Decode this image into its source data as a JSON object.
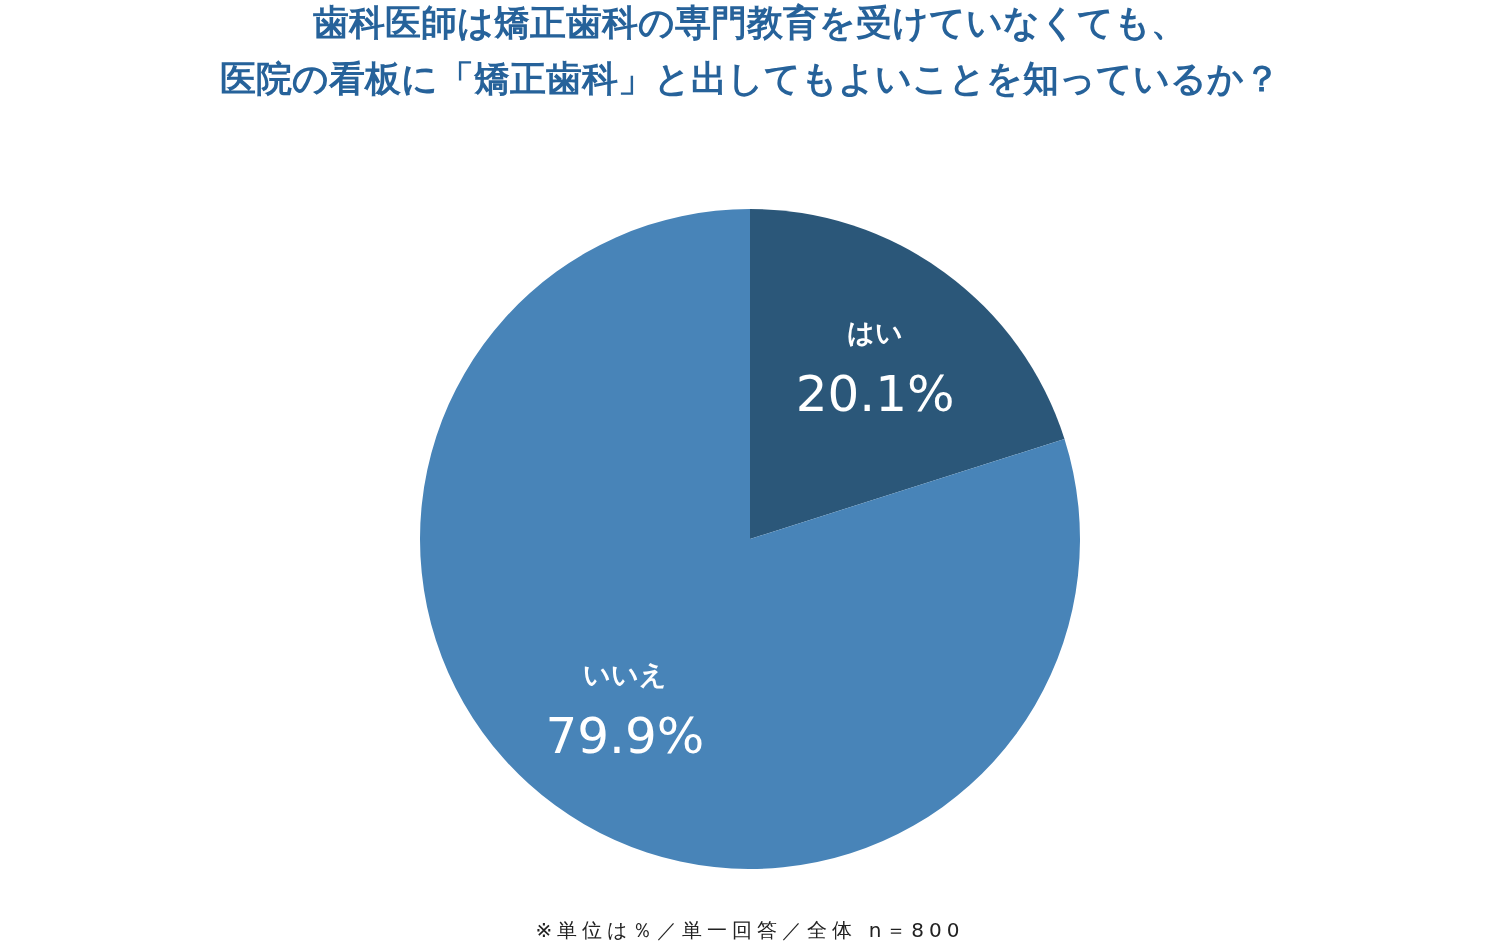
{
  "chart_data": {
    "type": "pie",
    "title": "歯科医師は矯正歯科の専門教育を受けていなくても、",
    "subtitle": "医院の看板に「矯正歯科」と出してもよいことを知っているか？",
    "categories": [
      "はい",
      "いいえ"
    ],
    "values": [
      20.1,
      79.9
    ],
    "colors": [
      "#2b5779",
      "#4884b8"
    ],
    "value_labels": [
      "20.1%",
      "79.9%"
    ],
    "annotations": [
      "※単位は％／単一回答／全体 n＝800"
    ]
  }
}
